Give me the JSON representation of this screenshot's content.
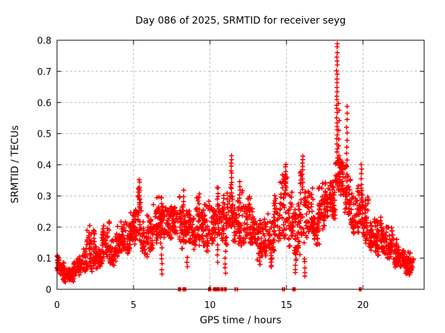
{
  "chart_data": {
    "type": "scatter",
    "title": "Day 086 of 2025, SRMTID for receiver seyg",
    "xlabel": "GPS time / hours",
    "ylabel": "SRMTID / TECUs",
    "xlim": [
      0,
      24
    ],
    "ylim": [
      0,
      0.8
    ],
    "xticks": [
      0,
      5,
      10,
      15,
      20
    ],
    "yticks": [
      0,
      0.1,
      0.2,
      0.3,
      0.4,
      0.5,
      0.6,
      0.7,
      0.8
    ],
    "grid": true,
    "legend_position": "none",
    "marker": "plus",
    "series_name": "SRMTID",
    "colors": {
      "marker": "#ff0000",
      "grid": "#b0b0b0",
      "axis": "#000000",
      "background": "#ffffff",
      "text": "#000000"
    },
    "seed": 86,
    "band_profile_fields": [
      "t_start_h",
      "t_end_h",
      "y_min_TECU",
      "y_max_TECU",
      "points_per_hour"
    ],
    "band_profile": [
      [
        0.0,
        0.3,
        0.04,
        0.11,
        120
      ],
      [
        0.3,
        0.7,
        0.015,
        0.09,
        100
      ],
      [
        0.7,
        1.1,
        0.015,
        0.07,
        90
      ],
      [
        1.1,
        1.5,
        0.03,
        0.1,
        90
      ],
      [
        1.5,
        1.9,
        0.05,
        0.13,
        95
      ],
      [
        1.9,
        2.45,
        0.05,
        0.21,
        100
      ],
      [
        2.45,
        2.9,
        0.06,
        0.16,
        95
      ],
      [
        2.9,
        3.45,
        0.08,
        0.23,
        95
      ],
      [
        3.45,
        3.9,
        0.06,
        0.17,
        90
      ],
      [
        3.9,
        4.4,
        0.1,
        0.22,
        95
      ],
      [
        4.4,
        4.9,
        0.11,
        0.25,
        95
      ],
      [
        4.9,
        5.1,
        0.13,
        0.26,
        100
      ],
      [
        5.1,
        5.5,
        0.13,
        0.33,
        100
      ],
      [
        5.5,
        5.9,
        0.1,
        0.22,
        95
      ],
      [
        5.9,
        6.3,
        0.12,
        0.24,
        95
      ],
      [
        6.3,
        6.7,
        0.14,
        0.3,
        100
      ],
      [
        6.7,
        7.1,
        0.14,
        0.32,
        100
      ],
      [
        7.1,
        7.5,
        0.15,
        0.31,
        95
      ],
      [
        7.5,
        7.9,
        0.15,
        0.31,
        100
      ],
      [
        7.9,
        8.3,
        0.12,
        0.32,
        100
      ],
      [
        8.3,
        8.7,
        0.13,
        0.29,
        95
      ],
      [
        8.7,
        9.1,
        0.12,
        0.26,
        95
      ],
      [
        9.1,
        9.5,
        0.13,
        0.31,
        95
      ],
      [
        9.5,
        9.9,
        0.1,
        0.28,
        95
      ],
      [
        9.9,
        10.3,
        0.13,
        0.3,
        95
      ],
      [
        10.3,
        10.7,
        0.15,
        0.33,
        100
      ],
      [
        10.7,
        11.1,
        0.13,
        0.31,
        95
      ],
      [
        11.1,
        11.5,
        0.17,
        0.33,
        100
      ],
      [
        11.5,
        11.9,
        0.14,
        0.29,
        95
      ],
      [
        11.9,
        12.3,
        0.13,
        0.33,
        95
      ],
      [
        12.3,
        12.7,
        0.14,
        0.3,
        95
      ],
      [
        12.7,
        13.1,
        0.12,
        0.27,
        95
      ],
      [
        13.1,
        13.6,
        0.09,
        0.25,
        90
      ],
      [
        13.6,
        14.2,
        0.08,
        0.26,
        95
      ],
      [
        14.2,
        14.6,
        0.14,
        0.32,
        95
      ],
      [
        14.6,
        15.1,
        0.14,
        0.37,
        100
      ],
      [
        15.1,
        15.5,
        0.12,
        0.33,
        95
      ],
      [
        15.5,
        15.9,
        0.08,
        0.35,
        95
      ],
      [
        15.9,
        16.3,
        0.1,
        0.38,
        95
      ],
      [
        16.3,
        16.7,
        0.14,
        0.33,
        95
      ],
      [
        16.7,
        17.1,
        0.14,
        0.31,
        95
      ],
      [
        17.1,
        17.5,
        0.17,
        0.35,
        95
      ],
      [
        17.5,
        17.9,
        0.19,
        0.38,
        100
      ],
      [
        17.9,
        18.2,
        0.22,
        0.42,
        105
      ],
      [
        18.2,
        18.5,
        0.28,
        0.46,
        110
      ],
      [
        18.5,
        18.8,
        0.26,
        0.43,
        100
      ],
      [
        18.8,
        19.2,
        0.22,
        0.4,
        100
      ],
      [
        19.2,
        19.6,
        0.17,
        0.33,
        95
      ],
      [
        19.6,
        20.0,
        0.16,
        0.34,
        100
      ],
      [
        20.0,
        20.4,
        0.13,
        0.3,
        100
      ],
      [
        20.4,
        20.8,
        0.12,
        0.26,
        95
      ],
      [
        20.8,
        21.2,
        0.1,
        0.24,
        95
      ],
      [
        21.2,
        21.6,
        0.1,
        0.21,
        95
      ],
      [
        21.6,
        22.0,
        0.09,
        0.2,
        100
      ],
      [
        22.0,
        22.4,
        0.07,
        0.17,
        100
      ],
      [
        22.4,
        22.8,
        0.06,
        0.15,
        100
      ],
      [
        22.8,
        23.3,
        0.04,
        0.13,
        110
      ]
    ],
    "spike_columns_fields": [
      "t_h",
      "y_from_TECU",
      "y_to_TECU",
      "n_points"
    ],
    "spike_columns": [
      [
        5.38,
        0.25,
        0.355,
        9
      ],
      [
        6.85,
        0.05,
        0.13,
        6
      ],
      [
        8.28,
        0.22,
        0.315,
        7
      ],
      [
        8.5,
        0.07,
        0.1,
        3
      ],
      [
        9.3,
        0.24,
        0.31,
        5
      ],
      [
        10.5,
        0.09,
        0.14,
        4
      ],
      [
        11.0,
        0.05,
        0.12,
        5
      ],
      [
        11.4,
        0.3,
        0.43,
        12
      ],
      [
        11.95,
        0.28,
        0.345,
        6
      ],
      [
        12.6,
        0.25,
        0.3,
        5
      ],
      [
        13.25,
        0.08,
        0.13,
        5
      ],
      [
        14.0,
        0.07,
        0.12,
        6
      ],
      [
        14.95,
        0.32,
        0.4,
        9
      ],
      [
        15.6,
        0.05,
        0.11,
        5
      ],
      [
        16.05,
        0.32,
        0.43,
        10
      ],
      [
        16.2,
        0.04,
        0.1,
        5
      ],
      [
        18.3,
        0.44,
        0.79,
        26
      ],
      [
        18.42,
        0.4,
        0.6,
        8
      ],
      [
        18.95,
        0.3,
        0.59,
        14
      ],
      [
        19.9,
        0.26,
        0.4,
        10
      ]
    ],
    "baseline_flags_fields": [
      "t_start_h",
      "t_end_h"
    ],
    "baseline_flags": [
      [
        7.9,
        8.12
      ],
      [
        8.2,
        8.45
      ],
      [
        9.87,
        10.08
      ],
      [
        10.2,
        10.65
      ],
      [
        10.7,
        10.88
      ],
      [
        10.92,
        11.1
      ],
      [
        11.6,
        11.68
      ],
      [
        11.74,
        11.82
      ],
      [
        14.7,
        14.76
      ],
      [
        14.82,
        14.88
      ],
      [
        15.38,
        15.6
      ],
      [
        19.73,
        19.91
      ]
    ]
  }
}
